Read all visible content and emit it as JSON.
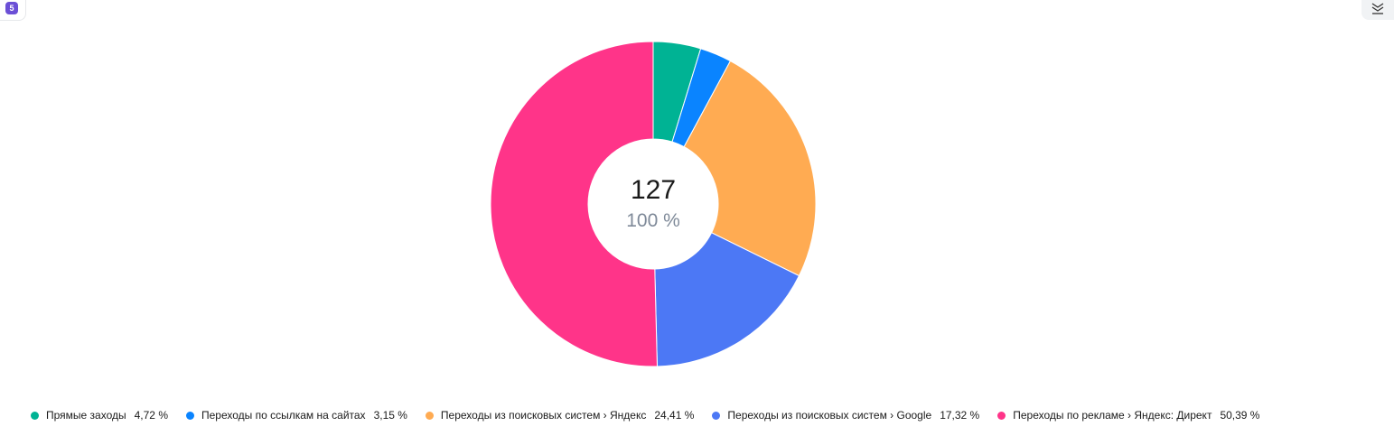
{
  "badge": {
    "count": "5"
  },
  "center": {
    "total": "127",
    "percent": "100 %"
  },
  "colors": [
    "#00b394",
    "#0a84ff",
    "#ffab52",
    "#4c78f5",
    "#ff3489"
  ],
  "chart_data": {
    "type": "pie",
    "donut": true,
    "legend_position": "bottom-left",
    "slices": [
      {
        "label": "Прямые заходы",
        "value": 4.72,
        "value_label": "4,72 %"
      },
      {
        "label": "Переходы по ссылкам на сайтах",
        "value": 3.15,
        "value_label": "3,15 %"
      },
      {
        "label": "Переходы из поисковых систем › Яндекс",
        "value": 24.41,
        "value_label": "24,41 %"
      },
      {
        "label": "Переходы из поисковых систем › Google",
        "value": 17.32,
        "value_label": "17,32 %"
      },
      {
        "label": "Переходы по рекламе › Яндекс: Директ",
        "value": 50.39,
        "value_label": "50,39 %"
      }
    ]
  }
}
